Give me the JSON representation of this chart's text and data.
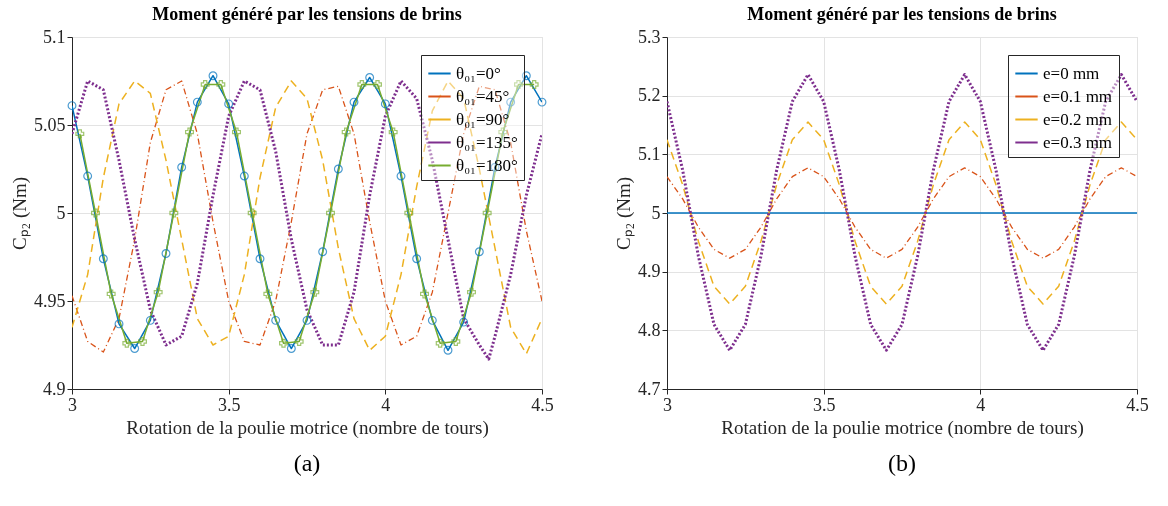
{
  "chart_data": [
    {
      "type": "line",
      "title": "Moment généré par les tensions de brins",
      "xlabel": "Rotation de la poulie motrice (nombre de tours)",
      "ylabel": "Cₚ₂ (Nm)",
      "annotations": [
        "(a)"
      ],
      "xlim": [
        3,
        4.5
      ],
      "ylim": [
        4.9,
        5.1
      ],
      "xticks": [
        3,
        3.5,
        4,
        4.5
      ],
      "yticks": [
        4.9,
        4.95,
        5,
        5.05,
        5.1
      ],
      "grid": true,
      "legend": "top right",
      "x": [
        3.0,
        3.05,
        3.1,
        3.15,
        3.2,
        3.25,
        3.3,
        3.35,
        3.4,
        3.45,
        3.5,
        3.55,
        3.6,
        3.65,
        3.7,
        3.75,
        3.8,
        3.85,
        3.9,
        3.95,
        4.0,
        4.05,
        4.1,
        4.15,
        4.2,
        4.25,
        4.3,
        4.35,
        4.4,
        4.45,
        4.5
      ],
      "series": [
        {
          "name": "θ₀₁=0°",
          "color": "#0072bd",
          "line_style": "solid",
          "marker": "circle",
          "values": [
            5.061,
            5.021,
            4.974,
            4.937,
            4.923,
            4.939,
            4.977,
            5.026,
            5.063,
            5.078,
            5.062,
            5.021,
            4.974,
            4.939,
            4.923,
            4.939,
            4.978,
            5.025,
            5.063,
            5.077,
            5.062,
            5.021,
            4.974,
            4.939,
            4.922,
            4.938,
            4.978,
            5.026,
            5.063,
            5.078,
            5.063
          ]
        },
        {
          "name": "θ₀₁=45°",
          "color": "#d95319",
          "line_style": "dashdot",
          "marker": "none",
          "values": [
            4.953,
            4.927,
            4.921,
            4.94,
            4.985,
            5.04,
            5.07,
            5.075,
            5.045,
            4.995,
            4.95,
            4.927,
            4.925,
            4.95,
            4.995,
            5.045,
            5.07,
            5.072,
            5.045,
            4.995,
            4.95,
            4.925,
            4.93,
            4.955,
            5.0,
            5.045,
            5.072,
            5.07,
            5.04,
            4.99,
            4.95
          ]
        },
        {
          "name": "θ₀₁=90°",
          "color": "#edb120",
          "line_style": "dashed",
          "marker": "none",
          "values": [
            4.935,
            4.965,
            5.02,
            5.062,
            5.075,
            5.068,
            5.03,
            4.985,
            4.94,
            4.925,
            4.93,
            4.965,
            5.02,
            5.06,
            5.075,
            5.065,
            5.03,
            4.98,
            4.94,
            4.922,
            4.93,
            4.965,
            5.015,
            5.058,
            5.075,
            5.065,
            5.025,
            4.98,
            4.935,
            4.92,
            4.94
          ]
        },
        {
          "name": "θ₀₁=135°",
          "color": "#7e2f8e",
          "line_style": "dotted",
          "marker": "none",
          "x": [
            3.0,
            3.05,
            3.1,
            3.15,
            3.2,
            3.25,
            3.3,
            3.35,
            3.4,
            3.45,
            3.5,
            3.55,
            3.6,
            3.65,
            3.7,
            3.75,
            3.8,
            3.85,
            3.9,
            3.95,
            4.0,
            4.05,
            4.1,
            4.15,
            4.2,
            4.25,
            4.3,
            4.33,
            4.35,
            4.4,
            4.45,
            4.5
          ],
          "values": [
            5.045,
            5.075,
            5.07,
            5.03,
            4.985,
            4.945,
            4.925,
            4.93,
            4.96,
            5.01,
            5.055,
            5.075,
            5.07,
            5.035,
            4.985,
            4.945,
            4.925,
            4.925,
            4.955,
            5.01,
            5.055,
            5.075,
            5.065,
            5.03,
            4.985,
            4.94,
            4.925,
            4.917,
            4.93,
            4.965,
            5.01,
            5.045
          ]
        },
        {
          "name": "θ₀₁=180°",
          "color": "#77ac30",
          "line_style": "solid",
          "marker": "cross",
          "x": [
            3.025,
            3.075,
            3.125,
            3.175,
            3.225,
            3.275,
            3.325,
            3.375,
            3.425,
            3.475,
            3.525,
            3.575,
            3.625,
            3.675,
            3.725,
            3.775,
            3.825,
            3.875,
            3.925,
            3.975,
            4.025,
            4.075,
            4.125,
            4.175,
            4.225,
            4.275,
            4.325,
            4.375,
            4.425,
            4.475
          ],
          "values": [
            5.045,
            5.0,
            4.954,
            4.926,
            4.927,
            4.955,
            5.0,
            5.046,
            5.073,
            5.073,
            5.046,
            5.0,
            4.954,
            4.926,
            4.927,
            4.955,
            5.0,
            5.046,
            5.073,
            5.073,
            5.046,
            5.0,
            4.954,
            4.926,
            4.927,
            4.955,
            5.0,
            5.046,
            5.073,
            5.073
          ]
        }
      ]
    },
    {
      "type": "line",
      "title": "Moment généré par les tensions de brins",
      "xlabel": "Rotation de la poulie motrice (nombre de tours)",
      "ylabel": "Cₚ₂ (Nm)",
      "annotations": [
        "(b)"
      ],
      "xlim": [
        3,
        4.5
      ],
      "ylim": [
        4.7,
        5.3
      ],
      "xticks": [
        3,
        3.5,
        4,
        4.5
      ],
      "yticks": [
        4.7,
        4.8,
        4.9,
        5,
        5.1,
        5.2,
        5.3
      ],
      "grid": true,
      "legend": "top right",
      "x": [
        3.0,
        3.05,
        3.1,
        3.15,
        3.2,
        3.25,
        3.3,
        3.35,
        3.4,
        3.45,
        3.5,
        3.55,
        3.6,
        3.65,
        3.7,
        3.75,
        3.8,
        3.85,
        3.9,
        3.95,
        4.0,
        4.05,
        4.1,
        4.15,
        4.2,
        4.25,
        4.3,
        4.35,
        4.4,
        4.45,
        4.5
      ],
      "series": [
        {
          "name": "e=0 mm",
          "color": "#0072bd",
          "line_style": "solid",
          "marker": "none",
          "values": [
            5.0,
            5.0,
            5.0,
            5.0,
            5.0,
            5.0,
            5.0,
            5.0,
            5.0,
            5.0,
            5.0,
            5.0,
            5.0,
            5.0,
            5.0,
            5.0,
            5.0,
            5.0,
            5.0,
            5.0,
            5.0,
            5.0,
            5.0,
            5.0,
            5.0,
            5.0,
            5.0,
            5.0,
            5.0,
            5.0,
            5.0
          ]
        },
        {
          "name": "e=0.1 mm",
          "color": "#d95319",
          "line_style": "dashdot",
          "marker": "none",
          "values": [
            5.062,
            5.024,
            4.976,
            4.938,
            4.923,
            4.938,
            4.976,
            5.024,
            5.062,
            5.077,
            5.062,
            5.024,
            4.976,
            4.938,
            4.923,
            4.938,
            4.976,
            5.024,
            5.062,
            5.077,
            5.062,
            5.024,
            4.976,
            4.938,
            4.923,
            4.938,
            4.976,
            5.024,
            5.062,
            5.077,
            5.062
          ]
        },
        {
          "name": "e=0.2 mm",
          "color": "#edb120",
          "line_style": "dashed",
          "marker": "none",
          "values": [
            5.125,
            5.048,
            4.952,
            4.875,
            4.845,
            4.875,
            4.952,
            5.048,
            5.125,
            5.155,
            5.125,
            5.048,
            4.952,
            4.875,
            4.845,
            4.875,
            4.952,
            5.048,
            5.125,
            5.155,
            5.125,
            5.048,
            4.952,
            4.875,
            4.845,
            4.875,
            4.952,
            5.048,
            5.125,
            5.155,
            5.125
          ]
        },
        {
          "name": "e=0.3 mm",
          "color": "#7e2f8e",
          "line_style": "dotted",
          "marker": "none",
          "values": [
            5.19,
            5.073,
            4.927,
            4.81,
            4.766,
            4.81,
            4.927,
            5.073,
            5.19,
            5.236,
            5.19,
            5.073,
            4.927,
            4.81,
            4.766,
            4.81,
            4.927,
            5.073,
            5.19,
            5.236,
            5.19,
            5.073,
            4.927,
            4.81,
            4.766,
            4.81,
            4.927,
            5.073,
            5.19,
            5.236,
            5.19
          ]
        }
      ]
    }
  ]
}
